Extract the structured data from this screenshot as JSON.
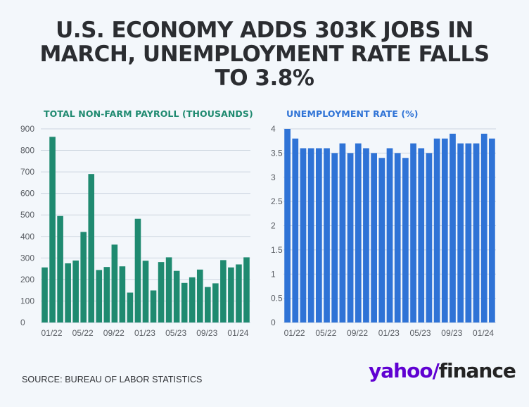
{
  "headline": "U.S. ECONOMY ADDS 303K JOBS IN MARCH, UNEMPLOYMENT RATE FALLS TO 3.8%",
  "source": "SOURCE: BUREAU OF LABOR STATISTICS",
  "logo": {
    "part1": "yahoo",
    "slash": "/",
    "part2": "finance"
  },
  "colors": {
    "payroll": "#1f8a70",
    "unemployment": "#2f73d6",
    "grid": "#cdd6e0"
  },
  "chart_data": [
    {
      "type": "bar",
      "title": "TOTAL NON-FARM PAYROLL (THOUSANDS)",
      "xlabel": "",
      "ylabel": "",
      "ylim": [
        0,
        900
      ],
      "yticks": [
        "0",
        "100",
        "200",
        "300",
        "400",
        "500",
        "600",
        "700",
        "800",
        "900"
      ],
      "xticks": [
        {
          "index": 0,
          "label": "01/22"
        },
        {
          "index": 4,
          "label": "05/22"
        },
        {
          "index": 8,
          "label": "09/22"
        },
        {
          "index": 12,
          "label": "01/23"
        },
        {
          "index": 16,
          "label": "05/23"
        },
        {
          "index": 20,
          "label": "09/23"
        },
        {
          "index": 24,
          "label": "01/24"
        }
      ],
      "grid": true,
      "values": [
        256,
        863,
        495,
        275,
        288,
        421,
        690,
        244,
        258,
        362,
        261,
        139,
        482,
        287,
        149,
        281,
        303,
        240,
        184,
        210,
        246,
        165,
        182,
        290,
        256,
        270,
        303
      ]
    },
    {
      "type": "bar",
      "title": "UNEMPLOYMENT RATE (%)",
      "xlabel": "",
      "ylabel": "",
      "ylim": [
        0,
        4
      ],
      "yticks": [
        "0",
        "0.5",
        "1",
        "1.5",
        "2",
        "2.5",
        "3",
        "3.5",
        "4"
      ],
      "xticks": [
        {
          "index": 0,
          "label": "01/22"
        },
        {
          "index": 4,
          "label": "05/22"
        },
        {
          "index": 8,
          "label": "09/22"
        },
        {
          "index": 12,
          "label": "01/23"
        },
        {
          "index": 16,
          "label": "05/23"
        },
        {
          "index": 20,
          "label": "09/23"
        },
        {
          "index": 24,
          "label": "01/24"
        }
      ],
      "grid": true,
      "values": [
        4.0,
        3.8,
        3.6,
        3.6,
        3.6,
        3.6,
        3.5,
        3.7,
        3.5,
        3.7,
        3.6,
        3.5,
        3.4,
        3.6,
        3.5,
        3.4,
        3.7,
        3.6,
        3.5,
        3.8,
        3.8,
        3.9,
        3.7,
        3.7,
        3.7,
        3.9,
        3.8
      ]
    }
  ]
}
